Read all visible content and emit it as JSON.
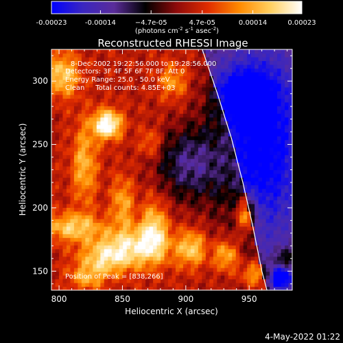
{
  "chart_data": {
    "type": "heatmap",
    "title": "Reconstructed RHESSI Image",
    "xlabel": "Heliocentric X (arcsec)",
    "ylabel": "Heliocentric Y (arcsec)",
    "xlim": [
      794,
      984
    ],
    "ylim": [
      135,
      325
    ],
    "x_ticks": [
      800,
      850,
      900,
      950
    ],
    "y_ticks": [
      150,
      200,
      250,
      300
    ],
    "colorbar": {
      "min": -0.00023,
      "max": 0.00023,
      "tick_values": [
        -0.00023,
        -0.00014,
        -4.7e-05,
        4.7e-05,
        0.00014,
        0.00023
      ],
      "tick_labels": [
        "-0.00023",
        "-0.00014",
        "−4.7e-05",
        "4.7e-05",
        "0.00014",
        "0.00023"
      ],
      "unit_parts": [
        "(photons cm",
        "-2",
        " s",
        "-1",
        " asec",
        "-2",
        ")"
      ],
      "palette": [
        "#0000ff",
        "#3a26c0",
        "#5a2c9a",
        "#000000",
        "#8e0a0a",
        "#e02c00",
        "#ff8a00",
        "#ffd060",
        "#ffffff"
      ]
    },
    "annotations": [
      "8-Dec-2002 19:22:56.000 to 19:28:56.000",
      "Detectors: 3F 4F 5F 6F 7F 8F, Att 0",
      "Energy Range: 25.0 - 50.0 keV",
      "Clean     Total counts: 4.85E+03"
    ],
    "peak_label": "Position of Peak = [838,266]",
    "peak": [
      838,
      266
    ],
    "limb_points": [
      [
        913,
        325
      ],
      [
        925,
        290
      ],
      [
        936,
        255
      ],
      [
        945,
        220
      ],
      [
        953,
        185
      ],
      [
        960,
        150
      ],
      [
        964,
        135
      ]
    ],
    "bright_sources": [
      {
        "x": 838,
        "y": 266,
        "value": 0.00023,
        "sx": 8,
        "sy": 8
      },
      {
        "x": 803,
        "y": 305,
        "value": 0.00015,
        "sx": 9,
        "sy": 12
      },
      {
        "x": 820,
        "y": 235,
        "value": 0.00012,
        "sx": 7,
        "sy": 22
      },
      {
        "x": 850,
        "y": 205,
        "value": 0.00011,
        "sx": 6,
        "sy": 14
      },
      {
        "x": 810,
        "y": 185,
        "value": 0.00014,
        "sx": 16,
        "sy": 8
      },
      {
        "x": 860,
        "y": 170,
        "value": 0.00016,
        "sx": 20,
        "sy": 12
      },
      {
        "x": 835,
        "y": 160,
        "value": 0.00012,
        "sx": 14,
        "sy": 9
      },
      {
        "x": 875,
        "y": 185,
        "value": 0.00013,
        "sx": 7,
        "sy": 16
      },
      {
        "x": 905,
        "y": 168,
        "value": 0.00014,
        "sx": 8,
        "sy": 10
      },
      {
        "x": 890,
        "y": 300,
        "value": 0.0001,
        "sx": 8,
        "sy": 10
      },
      {
        "x": 872,
        "y": 252,
        "value": 8e-05,
        "sx": 6,
        "sy": 8
      },
      {
        "x": 948,
        "y": 195,
        "value": 0.00017,
        "sx": 6,
        "sy": 10
      },
      {
        "x": 932,
        "y": 163,
        "value": 0.00014,
        "sx": 7,
        "sy": 9
      },
      {
        "x": 955,
        "y": 148,
        "value": 0.00012,
        "sx": 8,
        "sy": 7
      },
      {
        "x": 822,
        "y": 145,
        "value": 0.0001,
        "sx": 10,
        "sy": 7
      },
      {
        "x": 978,
        "y": 160,
        "value": 8e-05,
        "sx": 5,
        "sy": 6
      }
    ],
    "dark_sources": [
      {
        "x": 960,
        "y": 250,
        "value": -0.00016,
        "sx": 26,
        "sy": 55
      },
      {
        "x": 975,
        "y": 145,
        "value": -0.0002,
        "sx": 6,
        "sy": 6
      },
      {
        "x": 902,
        "y": 235,
        "value": -0.00013,
        "sx": 18,
        "sy": 20
      },
      {
        "x": 945,
        "y": 290,
        "value": -0.00012,
        "sx": 16,
        "sy": 14
      }
    ]
  },
  "footer_timestamp": "4-May-2022 01:22"
}
